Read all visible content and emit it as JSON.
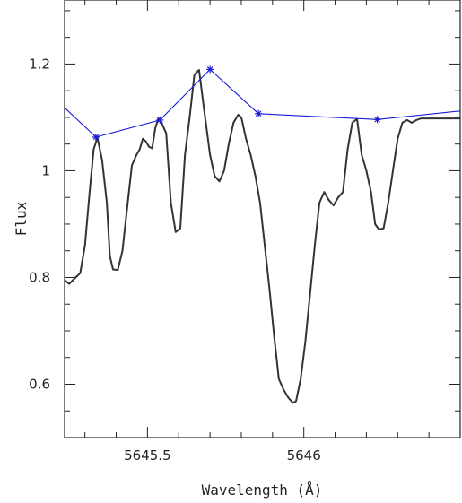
{
  "chart_data": {
    "type": "line",
    "xlabel": "Wavelength (Å)",
    "ylabel": "Flux",
    "xlim": [
      5645.235,
      5646.5
    ],
    "ylim": [
      0.5,
      1.32
    ],
    "xticks": [
      {
        "value": 5645.5,
        "label": "5645.5"
      },
      {
        "value": 5646.0,
        "label": "5646"
      }
    ],
    "yticks": [
      {
        "value": 0.6,
        "label": "0.6"
      },
      {
        "value": 0.8,
        "label": "0.8"
      },
      {
        "value": 1.0,
        "label": "1"
      },
      {
        "value": 1.2,
        "label": "1.2"
      }
    ],
    "series": [
      {
        "color": "#333333",
        "style": "line",
        "x": [
          5645.235,
          5645.25,
          5645.27,
          5645.285,
          5645.3,
          5645.315,
          5645.328,
          5645.34,
          5645.355,
          5645.37,
          5645.38,
          5645.39,
          5645.405,
          5645.42,
          5645.435,
          5645.45,
          5645.465,
          5645.475,
          5645.485,
          5645.495,
          5645.505,
          5645.515,
          5645.525,
          5645.535,
          5645.545,
          5645.56,
          5645.575,
          5645.59,
          5645.605,
          5645.62,
          5645.635,
          5645.65,
          5645.665,
          5645.68,
          5645.7,
          5645.715,
          5645.73,
          5645.745,
          5645.76,
          5645.775,
          5645.79,
          5645.8,
          5645.815,
          5645.83,
          5645.845,
          5645.86,
          5645.875,
          5645.89,
          5645.905,
          5645.92,
          5645.935,
          5645.95,
          5645.965,
          5645.975,
          5645.99,
          5646.005,
          5646.02,
          5646.035,
          5646.05,
          5646.065,
          5646.08,
          5646.095,
          5646.11,
          5646.125,
          5646.14,
          5646.155,
          5646.17,
          5646.185,
          5646.2,
          5646.215,
          5646.228,
          5646.24,
          5646.255,
          5646.27,
          5646.285,
          5646.3,
          5646.315,
          5646.33,
          5646.345,
          5646.36,
          5646.375,
          5646.39,
          5646.405,
          5646.42,
          5646.435,
          5646.45,
          5646.465,
          5646.48,
          5646.495,
          5646.5
        ],
        "y": [
          0.795,
          0.788,
          0.8,
          0.808,
          0.86,
          0.96,
          1.04,
          1.062,
          1.02,
          0.94,
          0.84,
          0.815,
          0.814,
          0.85,
          0.93,
          1.01,
          1.03,
          1.04,
          1.06,
          1.055,
          1.045,
          1.042,
          1.08,
          1.098,
          1.09,
          1.07,
          0.94,
          0.885,
          0.892,
          1.03,
          1.1,
          1.18,
          1.189,
          1.12,
          1.03,
          0.99,
          0.98,
          1.0,
          1.05,
          1.09,
          1.105,
          1.1,
          1.06,
          1.03,
          0.99,
          0.94,
          0.86,
          0.78,
          0.69,
          0.61,
          0.59,
          0.575,
          0.565,
          0.568,
          0.61,
          0.68,
          0.77,
          0.86,
          0.94,
          0.96,
          0.945,
          0.935,
          0.95,
          0.96,
          1.04,
          1.09,
          1.097,
          1.03,
          1.0,
          0.96,
          0.9,
          0.89,
          0.892,
          0.94,
          1.0,
          1.06,
          1.09,
          1.095,
          1.09,
          1.095,
          1.098,
          1.098,
          1.098,
          1.098,
          1.098,
          1.098,
          1.098,
          1.098,
          1.098,
          1.098
        ]
      },
      {
        "color": "#1a1ad6",
        "style": "line-with-star-markers",
        "x": [
          5645.235,
          5645.335,
          5645.54,
          5645.7,
          5645.855,
          5646.235,
          5646.5
        ],
        "y": [
          1.118,
          1.063,
          1.095,
          1.19,
          1.107,
          1.096,
          1.112
        ],
        "markers": [
          false,
          true,
          true,
          true,
          true,
          true,
          false
        ]
      }
    ],
    "grid": false
  }
}
